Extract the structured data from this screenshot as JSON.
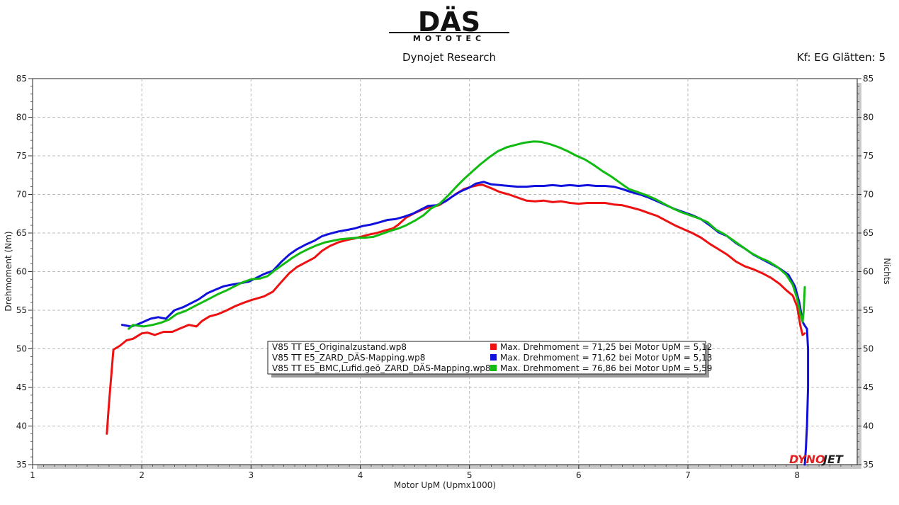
{
  "header": {
    "logo_main": "DÄS",
    "logo_sub": "MOTOTEC",
    "title": "Dynojet Research",
    "smoothing": "Kf: EG Glätten: 5"
  },
  "brand": {
    "watermark_a": "DYNO",
    "watermark_b": "JET"
  },
  "legend": {
    "files": [
      "V85 TT E5_Originalzustand.wp8",
      "V85 TT E5_ZARD_DÄS-Mapping.wp8",
      "V85 TT E5_BMC,Lufid.geö_ZARD_DÄS-Mapping.wp8"
    ],
    "maxima": [
      "Max. Drehmoment = 71,25 bei Motor UpM = 5,12",
      "Max. Drehmoment = 71,62 bei Motor UpM = 5,13",
      "Max. Drehmoment = 76,86 bei Motor UpM = 5,59"
    ]
  },
  "chart_data": {
    "type": "line",
    "xlabel": "Motor UpM (Upmx1000)",
    "ylabel": "Drehmoment (Nm)",
    "ylabel_right": "Nichts",
    "xlim": [
      1,
      8.55
    ],
    "ylim": [
      35,
      85
    ],
    "x_ticks": [
      "1",
      "2",
      "3",
      "4",
      "5",
      "6",
      "7",
      "8"
    ],
    "y_ticks": [
      "35",
      "40",
      "45",
      "50",
      "55",
      "60",
      "65",
      "70",
      "75",
      "80",
      "85"
    ],
    "grid": true,
    "legend_position": "center",
    "series": [
      {
        "name": "V85 TT E5_Originalzustand.wp8",
        "color": "#ee1111",
        "points": [
          [
            1.68,
            39.0
          ],
          [
            1.7,
            43.0
          ],
          [
            1.74,
            49.9
          ],
          [
            1.8,
            50.4
          ],
          [
            1.86,
            51.1
          ],
          [
            1.92,
            51.3
          ],
          [
            2.0,
            52.0
          ],
          [
            2.05,
            52.1
          ],
          [
            2.12,
            51.8
          ],
          [
            2.2,
            52.2
          ],
          [
            2.28,
            52.2
          ],
          [
            2.36,
            52.7
          ],
          [
            2.43,
            53.1
          ],
          [
            2.5,
            52.9
          ],
          [
            2.55,
            53.6
          ],
          [
            2.62,
            54.2
          ],
          [
            2.7,
            54.5
          ],
          [
            2.78,
            55.0
          ],
          [
            2.85,
            55.5
          ],
          [
            2.92,
            55.9
          ],
          [
            3.0,
            56.3
          ],
          [
            3.05,
            56.5
          ],
          [
            3.12,
            56.8
          ],
          [
            3.2,
            57.4
          ],
          [
            3.28,
            58.7
          ],
          [
            3.35,
            59.8
          ],
          [
            3.42,
            60.6
          ],
          [
            3.5,
            61.2
          ],
          [
            3.58,
            61.8
          ],
          [
            3.65,
            62.7
          ],
          [
            3.72,
            63.3
          ],
          [
            3.8,
            63.8
          ],
          [
            3.88,
            64.1
          ],
          [
            3.95,
            64.3
          ],
          [
            4.0,
            64.5
          ],
          [
            4.08,
            64.8
          ],
          [
            4.15,
            65.0
          ],
          [
            4.22,
            65.3
          ],
          [
            4.3,
            65.6
          ],
          [
            4.35,
            66.1
          ],
          [
            4.42,
            67.0
          ],
          [
            4.5,
            67.6
          ],
          [
            4.58,
            68.1
          ],
          [
            4.65,
            68.4
          ],
          [
            4.72,
            68.6
          ],
          [
            4.8,
            69.3
          ],
          [
            4.88,
            70.1
          ],
          [
            4.95,
            70.7
          ],
          [
            5.02,
            71.0
          ],
          [
            5.08,
            71.2
          ],
          [
            5.12,
            71.25
          ],
          [
            5.2,
            70.8
          ],
          [
            5.28,
            70.3
          ],
          [
            5.36,
            70.0
          ],
          [
            5.44,
            69.6
          ],
          [
            5.52,
            69.2
          ],
          [
            5.6,
            69.1
          ],
          [
            5.68,
            69.2
          ],
          [
            5.76,
            69.0
          ],
          [
            5.84,
            69.1
          ],
          [
            5.92,
            68.9
          ],
          [
            6.0,
            68.8
          ],
          [
            6.08,
            68.9
          ],
          [
            6.16,
            68.9
          ],
          [
            6.24,
            68.9
          ],
          [
            6.32,
            68.7
          ],
          [
            6.4,
            68.6
          ],
          [
            6.48,
            68.3
          ],
          [
            6.56,
            68.0
          ],
          [
            6.64,
            67.6
          ],
          [
            6.72,
            67.2
          ],
          [
            6.8,
            66.6
          ],
          [
            6.88,
            66.0
          ],
          [
            6.96,
            65.5
          ],
          [
            7.04,
            65.0
          ],
          [
            7.12,
            64.4
          ],
          [
            7.2,
            63.6
          ],
          [
            7.28,
            62.9
          ],
          [
            7.36,
            62.2
          ],
          [
            7.44,
            61.3
          ],
          [
            7.52,
            60.7
          ],
          [
            7.6,
            60.3
          ],
          [
            7.68,
            59.8
          ],
          [
            7.76,
            59.2
          ],
          [
            7.84,
            58.4
          ],
          [
            7.9,
            57.6
          ],
          [
            7.96,
            56.9
          ],
          [
            8.0,
            55.5
          ],
          [
            8.03,
            53.0
          ],
          [
            8.05,
            51.8
          ],
          [
            8.07,
            52.0
          ]
        ]
      },
      {
        "name": "V85 TT E5_ZARD_DÄS-Mapping.wp8",
        "color": "#1111dd",
        "points": [
          [
            1.82,
            53.1
          ],
          [
            1.9,
            52.9
          ],
          [
            1.95,
            53.1
          ],
          [
            2.0,
            53.4
          ],
          [
            2.08,
            53.9
          ],
          [
            2.15,
            54.1
          ],
          [
            2.22,
            53.9
          ],
          [
            2.3,
            55.0
          ],
          [
            2.38,
            55.4
          ],
          [
            2.45,
            55.9
          ],
          [
            2.52,
            56.4
          ],
          [
            2.6,
            57.2
          ],
          [
            2.68,
            57.7
          ],
          [
            2.75,
            58.1
          ],
          [
            2.82,
            58.3
          ],
          [
            2.9,
            58.5
          ],
          [
            2.98,
            58.7
          ],
          [
            3.05,
            59.2
          ],
          [
            3.12,
            59.7
          ],
          [
            3.2,
            60.1
          ],
          [
            3.28,
            61.3
          ],
          [
            3.35,
            62.2
          ],
          [
            3.42,
            62.9
          ],
          [
            3.5,
            63.5
          ],
          [
            3.58,
            64.0
          ],
          [
            3.65,
            64.6
          ],
          [
            3.72,
            64.9
          ],
          [
            3.8,
            65.2
          ],
          [
            3.88,
            65.4
          ],
          [
            3.95,
            65.6
          ],
          [
            4.02,
            65.9
          ],
          [
            4.1,
            66.1
          ],
          [
            4.18,
            66.4
          ],
          [
            4.25,
            66.7
          ],
          [
            4.32,
            66.8
          ],
          [
            4.4,
            67.1
          ],
          [
            4.48,
            67.5
          ],
          [
            4.55,
            68.0
          ],
          [
            4.62,
            68.5
          ],
          [
            4.7,
            68.6
          ],
          [
            4.78,
            69.1
          ],
          [
            4.85,
            69.8
          ],
          [
            4.92,
            70.4
          ],
          [
            5.0,
            70.9
          ],
          [
            5.06,
            71.4
          ],
          [
            5.13,
            71.62
          ],
          [
            5.2,
            71.3
          ],
          [
            5.28,
            71.2
          ],
          [
            5.36,
            71.1
          ],
          [
            5.44,
            71.0
          ],
          [
            5.52,
            71.0
          ],
          [
            5.6,
            71.1
          ],
          [
            5.68,
            71.1
          ],
          [
            5.76,
            71.2
          ],
          [
            5.84,
            71.1
          ],
          [
            5.92,
            71.2
          ],
          [
            6.0,
            71.1
          ],
          [
            6.08,
            71.2
          ],
          [
            6.16,
            71.1
          ],
          [
            6.24,
            71.1
          ],
          [
            6.32,
            71.0
          ],
          [
            6.4,
            70.7
          ],
          [
            6.48,
            70.3
          ],
          [
            6.56,
            70.0
          ],
          [
            6.64,
            69.6
          ],
          [
            6.72,
            69.1
          ],
          [
            6.8,
            68.6
          ],
          [
            6.88,
            68.1
          ],
          [
            6.96,
            67.7
          ],
          [
            7.04,
            67.3
          ],
          [
            7.12,
            66.8
          ],
          [
            7.2,
            66.0
          ],
          [
            7.28,
            65.1
          ],
          [
            7.36,
            64.6
          ],
          [
            7.44,
            63.7
          ],
          [
            7.52,
            63.0
          ],
          [
            7.6,
            62.2
          ],
          [
            7.68,
            61.6
          ],
          [
            7.76,
            61.0
          ],
          [
            7.84,
            60.4
          ],
          [
            7.92,
            59.6
          ],
          [
            7.98,
            58.1
          ],
          [
            8.02,
            56.0
          ],
          [
            8.05,
            53.5
          ],
          [
            8.07,
            53.0
          ],
          [
            8.09,
            52.6
          ],
          [
            8.1,
            50.0
          ],
          [
            8.1,
            45.0
          ],
          [
            8.09,
            40.0
          ],
          [
            8.08,
            37.0
          ],
          [
            8.07,
            35.0
          ]
        ]
      },
      {
        "name": "V85 TT E5_BMC,Lufid.geö_ZARD_DÄS-Mapping.wp8",
        "color": "#11bb11",
        "points": [
          [
            1.88,
            52.6
          ],
          [
            1.92,
            53.1
          ],
          [
            1.96,
            53.0
          ],
          [
            2.02,
            52.9
          ],
          [
            2.1,
            53.1
          ],
          [
            2.18,
            53.4
          ],
          [
            2.25,
            53.8
          ],
          [
            2.32,
            54.5
          ],
          [
            2.4,
            54.9
          ],
          [
            2.48,
            55.5
          ],
          [
            2.55,
            56.0
          ],
          [
            2.62,
            56.5
          ],
          [
            2.7,
            57.1
          ],
          [
            2.78,
            57.6
          ],
          [
            2.85,
            58.1
          ],
          [
            2.92,
            58.6
          ],
          [
            3.0,
            59.0
          ],
          [
            3.08,
            59.1
          ],
          [
            3.15,
            59.4
          ],
          [
            3.22,
            60.2
          ],
          [
            3.3,
            61.0
          ],
          [
            3.38,
            61.8
          ],
          [
            3.45,
            62.4
          ],
          [
            3.52,
            62.9
          ],
          [
            3.6,
            63.4
          ],
          [
            3.68,
            63.8
          ],
          [
            3.75,
            64.0
          ],
          [
            3.82,
            64.2
          ],
          [
            3.9,
            64.3
          ],
          [
            3.98,
            64.4
          ],
          [
            4.05,
            64.4
          ],
          [
            4.12,
            64.5
          ],
          [
            4.2,
            64.9
          ],
          [
            4.28,
            65.3
          ],
          [
            4.35,
            65.6
          ],
          [
            4.42,
            66.0
          ],
          [
            4.5,
            66.6
          ],
          [
            4.58,
            67.3
          ],
          [
            4.65,
            68.2
          ],
          [
            4.72,
            68.7
          ],
          [
            4.8,
            69.8
          ],
          [
            4.88,
            71.0
          ],
          [
            4.95,
            72.0
          ],
          [
            5.02,
            72.9
          ],
          [
            5.1,
            73.9
          ],
          [
            5.18,
            74.8
          ],
          [
            5.26,
            75.6
          ],
          [
            5.34,
            76.1
          ],
          [
            5.42,
            76.4
          ],
          [
            5.5,
            76.7
          ],
          [
            5.59,
            76.86
          ],
          [
            5.66,
            76.8
          ],
          [
            5.74,
            76.5
          ],
          [
            5.82,
            76.1
          ],
          [
            5.9,
            75.6
          ],
          [
            5.98,
            75.0
          ],
          [
            6.06,
            74.5
          ],
          [
            6.14,
            73.8
          ],
          [
            6.22,
            73.0
          ],
          [
            6.3,
            72.3
          ],
          [
            6.38,
            71.5
          ],
          [
            6.46,
            70.7
          ],
          [
            6.54,
            70.3
          ],
          [
            6.62,
            69.9
          ],
          [
            6.7,
            69.4
          ],
          [
            6.78,
            68.8
          ],
          [
            6.86,
            68.2
          ],
          [
            6.94,
            67.7
          ],
          [
            7.02,
            67.3
          ],
          [
            7.1,
            66.9
          ],
          [
            7.18,
            66.4
          ],
          [
            7.26,
            65.4
          ],
          [
            7.34,
            64.8
          ],
          [
            7.42,
            64.0
          ],
          [
            7.5,
            63.2
          ],
          [
            7.58,
            62.4
          ],
          [
            7.66,
            61.8
          ],
          [
            7.74,
            61.3
          ],
          [
            7.82,
            60.6
          ],
          [
            7.9,
            59.6
          ],
          [
            7.96,
            58.3
          ],
          [
            8.0,
            56.5
          ],
          [
            8.03,
            54.5
          ],
          [
            8.05,
            53.5
          ],
          [
            8.06,
            55.0
          ],
          [
            8.07,
            58.0
          ]
        ]
      }
    ]
  }
}
